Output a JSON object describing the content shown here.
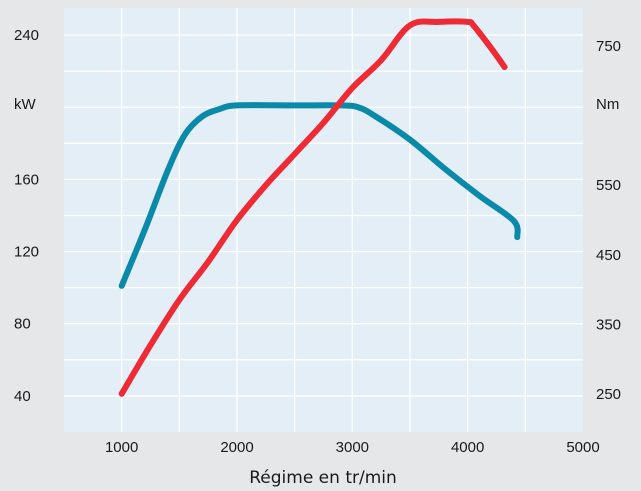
{
  "chart_data": {
    "type": "line",
    "title": "",
    "xlabel": "Régime en tr/min",
    "x_ticks": [
      1000,
      2000,
      3000,
      4000,
      5000
    ],
    "xlim": [
      500,
      5000
    ],
    "y_left": {
      "unit_label": "kW",
      "ticks": [
        40,
        80,
        120,
        160,
        240
      ],
      "ylim": [
        20,
        255
      ]
    },
    "y_right": {
      "unit_label": "Nm",
      "ticks": [
        250,
        350,
        450,
        550,
        750
      ],
      "ylim": [
        195,
        805
      ]
    },
    "grid": true,
    "legend": "none",
    "series": [
      {
        "axis": "left",
        "color": "#0a8aa8",
        "points": [
          [
            1000,
            101
          ],
          [
            1200,
            132
          ],
          [
            1400,
            165
          ],
          [
            1550,
            185
          ],
          [
            1700,
            195
          ],
          [
            1850,
            199
          ],
          [
            2000,
            201
          ],
          [
            2500,
            201
          ],
          [
            2900,
            201
          ],
          [
            3050,
            200
          ],
          [
            3200,
            195
          ],
          [
            3500,
            182
          ],
          [
            3800,
            166
          ],
          [
            4100,
            151
          ],
          [
            4400,
            137
          ],
          [
            4430,
            128
          ]
        ]
      },
      {
        "axis": "right",
        "color": "#ee2a35",
        "points": [
          [
            1000,
            250
          ],
          [
            1250,
            320
          ],
          [
            1500,
            385
          ],
          [
            1750,
            440
          ],
          [
            2000,
            500
          ],
          [
            2250,
            550
          ],
          [
            2500,
            595
          ],
          [
            2750,
            640
          ],
          [
            3000,
            690
          ],
          [
            3250,
            730
          ],
          [
            3500,
            780
          ],
          [
            3750,
            785
          ],
          [
            4000,
            785
          ],
          [
            4050,
            780
          ],
          [
            4200,
            748
          ],
          [
            4320,
            720
          ]
        ]
      }
    ]
  }
}
